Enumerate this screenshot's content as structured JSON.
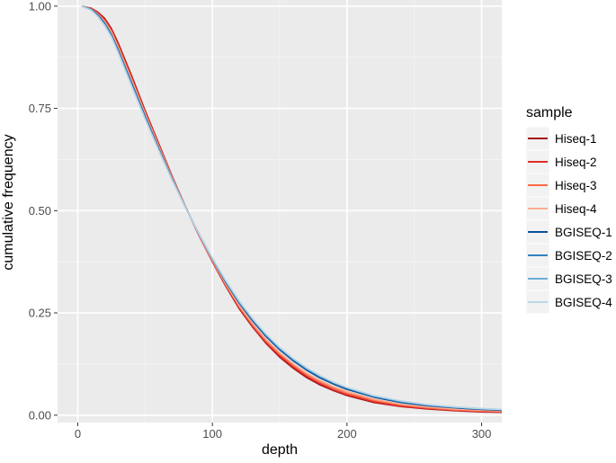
{
  "chart_data": {
    "type": "line",
    "title": "",
    "xlabel": "depth",
    "ylabel": "cumulative frequency",
    "xlim": [
      -15,
      315
    ],
    "ylim": [
      -0.018,
      1.015
    ],
    "grid": true,
    "legend_position": "right",
    "legend_title": "sample",
    "x_ticks": [
      0,
      100,
      200,
      300
    ],
    "x_tick_labels": [
      "0",
      "100",
      "200",
      "300"
    ],
    "y_ticks": [
      0,
      0.25,
      0.5,
      0.75,
      1.0
    ],
    "y_tick_labels": [
      "0.00",
      "0.25",
      "0.50",
      "0.75",
      "1.00"
    ],
    "x": [
      3,
      10,
      15,
      20,
      25,
      30,
      40,
      50,
      60,
      70,
      80,
      90,
      100,
      110,
      120,
      130,
      140,
      150,
      160,
      170,
      180,
      190,
      200,
      220,
      240,
      260,
      280,
      300,
      315
    ],
    "series": [
      {
        "name": "Hiseq-1",
        "color": "#a50f15",
        "values": [
          1.0,
          0.995,
          0.985,
          0.97,
          0.945,
          0.91,
          0.83,
          0.745,
          0.665,
          0.585,
          0.51,
          0.44,
          0.375,
          0.315,
          0.26,
          0.215,
          0.175,
          0.142,
          0.115,
          0.092,
          0.074,
          0.06,
          0.048,
          0.031,
          0.021,
          0.015,
          0.011,
          0.008,
          0.007
        ]
      },
      {
        "name": "Hiseq-2",
        "color": "#de2d26",
        "values": [
          1.0,
          0.994,
          0.983,
          0.967,
          0.942,
          0.906,
          0.826,
          0.742,
          0.662,
          0.583,
          0.509,
          0.44,
          0.376,
          0.317,
          0.262,
          0.217,
          0.177,
          0.145,
          0.118,
          0.095,
          0.077,
          0.062,
          0.05,
          0.033,
          0.022,
          0.016,
          0.012,
          0.009,
          0.008
        ]
      },
      {
        "name": "Hiseq-3",
        "color": "#fb6a4a",
        "values": [
          1.0,
          0.993,
          0.981,
          0.964,
          0.938,
          0.902,
          0.822,
          0.739,
          0.66,
          0.582,
          0.509,
          0.441,
          0.377,
          0.319,
          0.265,
          0.22,
          0.181,
          0.149,
          0.122,
          0.099,
          0.081,
          0.066,
          0.054,
          0.036,
          0.025,
          0.018,
          0.013,
          0.01,
          0.009
        ]
      },
      {
        "name": "Hiseq-4",
        "color": "#fcae91",
        "values": [
          1.0,
          0.993,
          0.98,
          0.962,
          0.936,
          0.899,
          0.819,
          0.737,
          0.658,
          0.581,
          0.509,
          0.442,
          0.379,
          0.321,
          0.268,
          0.224,
          0.185,
          0.153,
          0.126,
          0.103,
          0.085,
          0.07,
          0.058,
          0.039,
          0.027,
          0.02,
          0.015,
          0.012,
          0.011
        ]
      },
      {
        "name": "BGISEQ-1",
        "color": "#08519c",
        "values": [
          1.0,
          0.992,
          0.978,
          0.958,
          0.93,
          0.893,
          0.812,
          0.731,
          0.653,
          0.578,
          0.508,
          0.443,
          0.382,
          0.325,
          0.274,
          0.23,
          0.192,
          0.16,
          0.133,
          0.11,
          0.091,
          0.076,
          0.063,
          0.044,
          0.031,
          0.023,
          0.018,
          0.014,
          0.012
        ]
      },
      {
        "name": "BGISEQ-2",
        "color": "#3182bd",
        "values": [
          1.0,
          0.991,
          0.976,
          0.956,
          0.928,
          0.89,
          0.809,
          0.728,
          0.651,
          0.577,
          0.508,
          0.444,
          0.383,
          0.327,
          0.276,
          0.233,
          0.195,
          0.163,
          0.136,
          0.113,
          0.094,
          0.079,
          0.066,
          0.046,
          0.033,
          0.025,
          0.019,
          0.015,
          0.013
        ]
      },
      {
        "name": "BGISEQ-3",
        "color": "#6baed6",
        "values": [
          1.0,
          0.99,
          0.975,
          0.954,
          0.926,
          0.888,
          0.806,
          0.726,
          0.649,
          0.576,
          0.508,
          0.444,
          0.384,
          0.328,
          0.278,
          0.235,
          0.197,
          0.165,
          0.138,
          0.115,
          0.096,
          0.08,
          0.067,
          0.047,
          0.034,
          0.025,
          0.02,
          0.016,
          0.014
        ]
      },
      {
        "name": "BGISEQ-4",
        "color": "#bdd7e7",
        "values": [
          1.0,
          0.99,
          0.974,
          0.952,
          0.924,
          0.886,
          0.804,
          0.724,
          0.648,
          0.575,
          0.507,
          0.444,
          0.384,
          0.329,
          0.279,
          0.236,
          0.198,
          0.166,
          0.139,
          0.116,
          0.097,
          0.081,
          0.068,
          0.048,
          0.035,
          0.026,
          0.02,
          0.016,
          0.014
        ]
      }
    ]
  },
  "style": {
    "panel_bg": "#ebebeb",
    "grid_major": "#ffffff",
    "grid_minor": "#f5f5f5",
    "tick_color": "#333333",
    "legend_key_bg": "#f2f2f2"
  }
}
